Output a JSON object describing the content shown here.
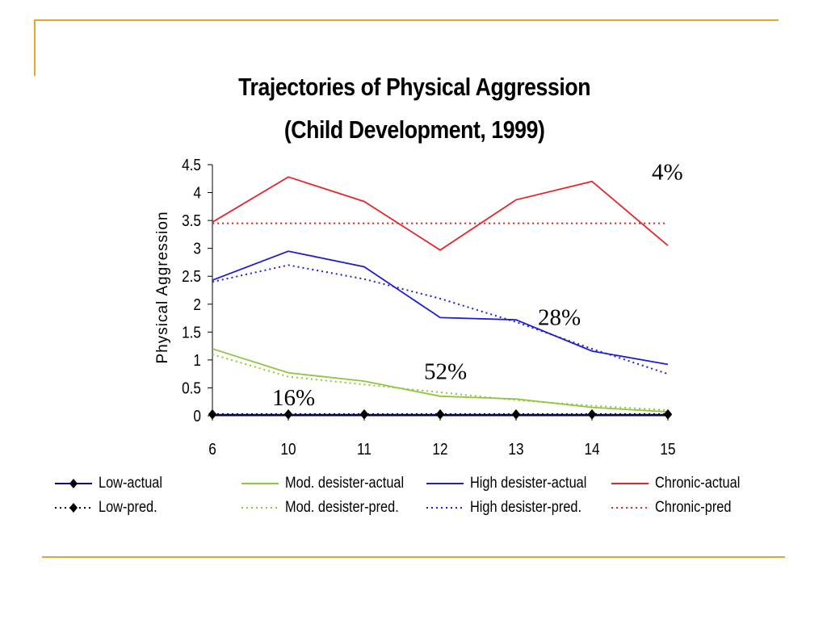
{
  "colors": {
    "frame_accent": "#E0A830",
    "low": "#00008B",
    "low_pred": "#000000",
    "mod_desister": "#8DC63F",
    "high_desister": "#1E1ED2",
    "chronic": "#E4262C"
  },
  "chart_data": {
    "type": "line",
    "title_line1": "Trajectories of Physical Aggression",
    "title_line2": "(Child Development, 1999)",
    "xlabel": "",
    "ylabel": "Physical Aggression",
    "categories": [
      "6",
      "10",
      "11",
      "12",
      "13",
      "14",
      "15"
    ],
    "y_ticks": [
      "0",
      "0.5",
      "1",
      "1.5",
      "2",
      "2.5",
      "3",
      "3.5",
      "4",
      "4.5"
    ],
    "ylim": [
      0,
      4.5
    ],
    "grid": false,
    "legend_position": "bottom",
    "series": [
      {
        "name": "Low-actual",
        "color": "#00008B",
        "style": "solid",
        "marker": "diamond",
        "values": [
          0.02,
          0.02,
          0.02,
          0.02,
          0.02,
          0.02,
          0.02
        ]
      },
      {
        "name": "Low-pred.",
        "color": "#000000",
        "style": "dotted",
        "marker": "diamond",
        "values": [
          0.03,
          0.03,
          0.03,
          0.03,
          0.03,
          0.03,
          0.03
        ]
      },
      {
        "name": "Mod. desister-actual",
        "color": "#8DC63F",
        "style": "solid",
        "marker": "none",
        "values": [
          1.2,
          0.77,
          0.62,
          0.35,
          0.3,
          0.15,
          0.07
        ]
      },
      {
        "name": "Mod. desister-pred.",
        "color": "#8DC63F",
        "style": "dotted",
        "marker": "none",
        "values": [
          1.1,
          0.7,
          0.56,
          0.42,
          0.28,
          0.18,
          0.1
        ]
      },
      {
        "name": "High desister-actual",
        "color": "#1E1ED2",
        "style": "solid",
        "marker": "none",
        "values": [
          2.43,
          2.95,
          2.67,
          1.76,
          1.72,
          1.16,
          0.92
        ]
      },
      {
        "name": "High desister-pred.",
        "color": "#1E1ED2",
        "style": "dotted",
        "marker": "none",
        "values": [
          2.4,
          2.7,
          2.45,
          2.1,
          1.68,
          1.2,
          0.75
        ]
      },
      {
        "name": "Chronic-actual",
        "color": "#E4262C",
        "style": "solid",
        "marker": "none",
        "values": [
          3.47,
          4.28,
          3.84,
          2.97,
          3.87,
          4.2,
          3.05
        ]
      },
      {
        "name": "Chronic-pred",
        "color": "#E4262C",
        "style": "dotted",
        "marker": "none",
        "values": [
          3.45,
          3.45,
          3.45,
          3.45,
          3.45,
          3.45,
          3.45
        ]
      }
    ],
    "annotations": [
      {
        "text": "4%",
        "x": "15",
        "y": 4.38
      },
      {
        "text": "28%",
        "x": "13.5",
        "y": 1.77
      },
      {
        "text": "52%",
        "x": "12",
        "y": 0.8
      },
      {
        "text": "16%",
        "x": "10",
        "y": 0.33
      }
    ]
  },
  "legend": {
    "items": [
      {
        "label": "Low-actual"
      },
      {
        "label": "Low-pred."
      },
      {
        "label": "Mod. desister-actual"
      },
      {
        "label": "Mod. desister-pred."
      },
      {
        "label": "High desister-actual"
      },
      {
        "label": "High desister-pred."
      },
      {
        "label": "Chronic-actual"
      },
      {
        "label": "Chronic-pred"
      }
    ]
  }
}
